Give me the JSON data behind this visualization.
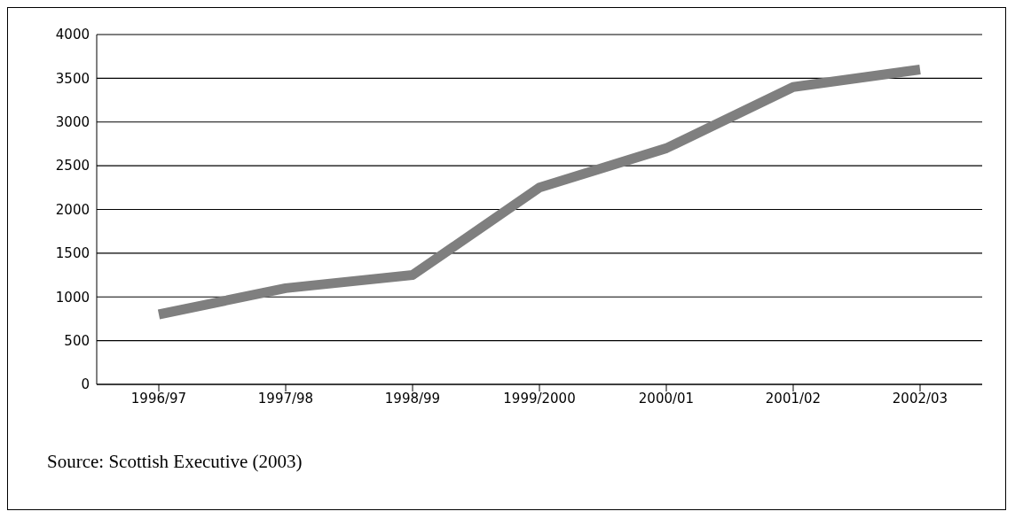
{
  "chart_data": {
    "type": "line",
    "categories": [
      "1996/97",
      "1997/98",
      "1998/99",
      "1999/2000",
      "2000/01",
      "2001/02",
      "2002/03"
    ],
    "series": [
      {
        "color": "#7f7f7f",
        "values": [
          800,
          1100,
          1250,
          2250,
          2700,
          3400,
          3600
        ]
      }
    ],
    "ylim": [
      0,
      4000
    ],
    "yticks": [
      0,
      500,
      1000,
      1500,
      2000,
      2500,
      3000,
      3500,
      4000
    ],
    "grid": "y",
    "legend": false,
    "marker": "none",
    "line_style": "solid",
    "annotations": [
      "Source: Scottish Executive (2003)"
    ]
  }
}
